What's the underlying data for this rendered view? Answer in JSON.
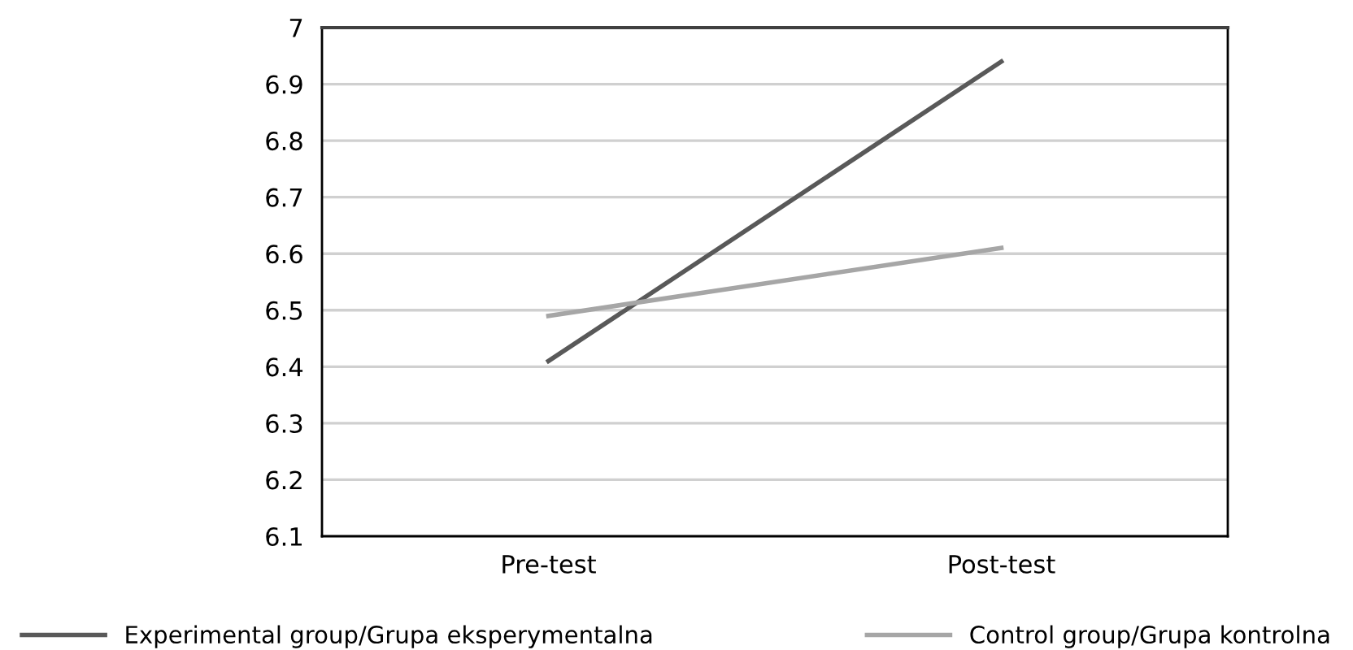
{
  "chart_data": {
    "type": "line",
    "categories": [
      "Pre-test",
      "Post-test"
    ],
    "series": [
      {
        "name": "Experimental group/Grupa eksperymentalna",
        "color": "#595959",
        "values": [
          6.41,
          6.94
        ]
      },
      {
        "name": "Control group/Grupa kontrolna",
        "color": "#a6a6a6",
        "values": [
          6.49,
          6.61
        ]
      }
    ],
    "ylim": [
      6.1,
      7
    ],
    "yticks": [
      6.1,
      6.2,
      6.3,
      6.4,
      6.5,
      6.6,
      6.7,
      6.8,
      6.9,
      7
    ],
    "grid": "y",
    "legend": "bottom",
    "marker": "none",
    "line_style": "solid"
  }
}
